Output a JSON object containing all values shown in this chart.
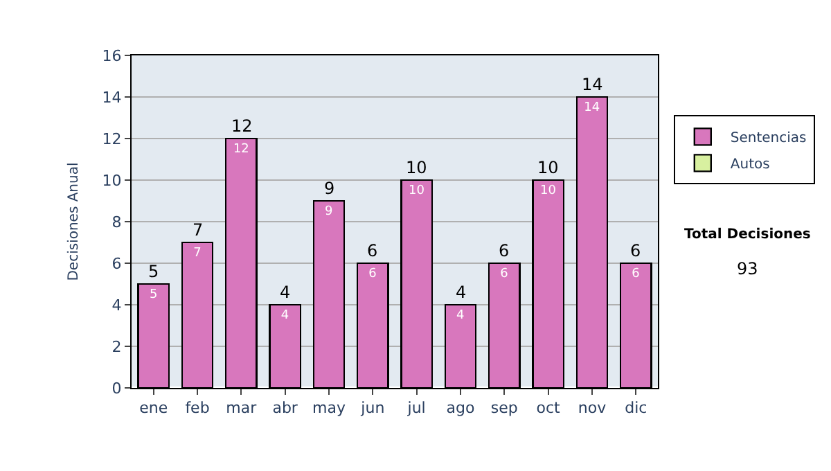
{
  "chart_data": {
    "type": "bar",
    "ylabel": "Decisiones Anual",
    "categories": [
      "ene",
      "feb",
      "mar",
      "abr",
      "may",
      "jun",
      "jul",
      "ago",
      "sep",
      "oct",
      "nov",
      "dic"
    ],
    "series": [
      {
        "name": "Sentencias",
        "color": "#d877bd",
        "values": [
          5,
          7,
          12,
          4,
          9,
          6,
          10,
          4,
          6,
          10,
          14,
          6
        ]
      },
      {
        "name": "Autos",
        "color": "#d8f0a0",
        "values": [
          null,
          null,
          null,
          null,
          null,
          null,
          null,
          null,
          null,
          null,
          null,
          null
        ]
      }
    ],
    "stacked": true,
    "data_labels": true,
    "totals": [
      "5",
      "7",
      "12",
      "4",
      "9",
      "6",
      "10",
      "4",
      "6",
      "10",
      "14",
      "6"
    ],
    "ylim": [
      0,
      16
    ],
    "yticks": [
      0,
      2,
      4,
      6,
      8,
      10,
      12,
      14,
      16
    ],
    "grid": "y",
    "legend": "right",
    "annotations": [
      "Total Decisiones",
      "93"
    ]
  }
}
